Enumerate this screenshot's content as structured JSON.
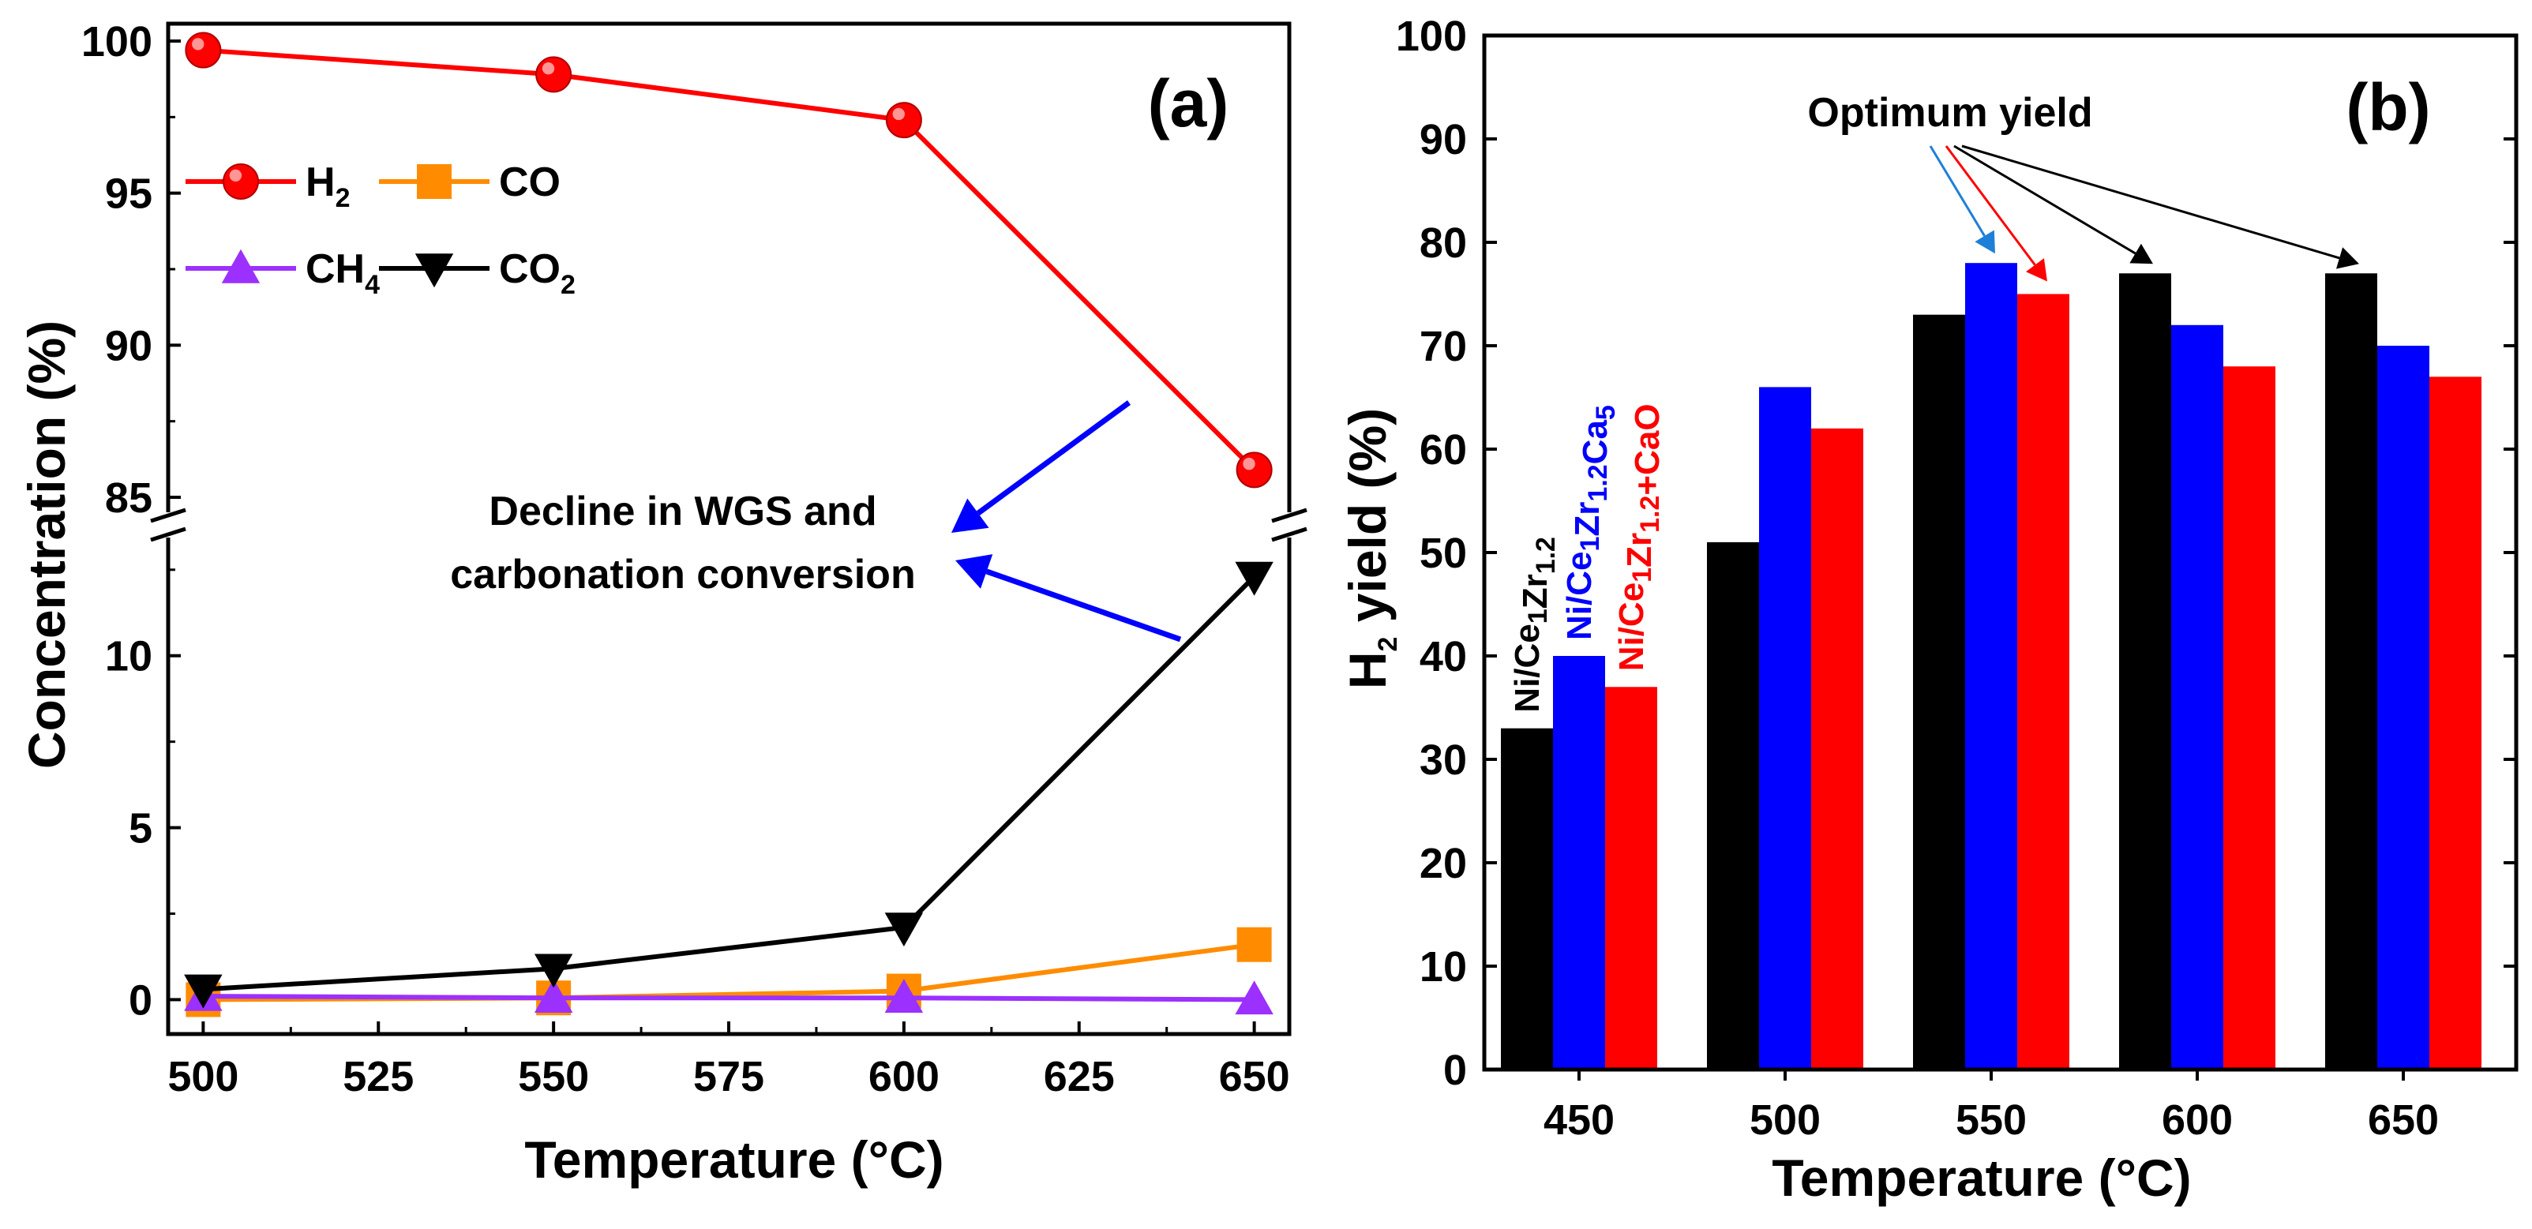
{
  "chart_data": [
    {
      "panel": "(a)",
      "type": "line",
      "xlabel": "Temperature (°C)",
      "ylabel": "Concentration (%)",
      "x": [
        500,
        550,
        600,
        650
      ],
      "xlim": [
        495,
        655
      ],
      "x_ticks": [
        500,
        525,
        550,
        575,
        600,
        625,
        650
      ],
      "y_axis_break": true,
      "ylim_lower": [
        -1,
        13
      ],
      "ylim_upper": [
        85,
        100
      ],
      "y_ticks_lower": [
        0,
        5,
        10
      ],
      "y_ticks_upper": [
        85,
        90,
        95,
        100
      ],
      "series": [
        {
          "name": "H2",
          "label_main": "H",
          "label_sub": "2",
          "marker": "circle",
          "color": "#ff0000",
          "values": [
            99.7,
            98.9,
            97.4,
            85.9
          ]
        },
        {
          "name": "CO",
          "label_main": "CO",
          "label_sub": "",
          "marker": "square",
          "color": "#ff8c00",
          "values": [
            0.0,
            0.05,
            0.25,
            1.6
          ]
        },
        {
          "name": "CH4",
          "label_main": "CH",
          "label_sub": "4",
          "marker": "triangle-up",
          "color": "#9b30ff",
          "values": [
            0.1,
            0.05,
            0.05,
            0.0
          ]
        },
        {
          "name": "CO2",
          "label_main": "CO",
          "label_sub": "2",
          "marker": "triangle-down",
          "color": "#000000",
          "values": [
            0.3,
            0.9,
            2.1,
            12.3
          ]
        }
      ],
      "annotation": {
        "line1": "Decline in WGS and",
        "line2": "carbonation conversion",
        "arrow_color": "#0000ff"
      },
      "grid": false,
      "legend": "upper-left"
    },
    {
      "panel": "(b)",
      "type": "bar",
      "xlabel": "Temperature (°C)",
      "ylabel_main": "H",
      "ylabel_sub": "2",
      "ylabel_rest": " yield (%)",
      "categories": [
        "450",
        "500",
        "550",
        "600",
        "650"
      ],
      "ylim": [
        0,
        100
      ],
      "y_ticks": [
        0,
        10,
        20,
        30,
        40,
        50,
        60,
        70,
        80,
        90,
        100
      ],
      "series": [
        {
          "name": "Ni/Ce1Zr1.2",
          "color": "#000000",
          "values": [
            33,
            51,
            73,
            77,
            77
          ],
          "label_parts": [
            [
              "Ni/Ce",
              ""
            ],
            [
              "1",
              "sub"
            ],
            [
              "Zr",
              ""
            ],
            [
              "1.2",
              "sub"
            ]
          ]
        },
        {
          "name": "Ni/Ce1Zr1.2Ca5",
          "color": "#0000ff",
          "values": [
            40,
            66,
            78,
            72,
            70
          ],
          "label_parts": [
            [
              "Ni/Ce",
              ""
            ],
            [
              "1",
              "sub"
            ],
            [
              "Zr",
              ""
            ],
            [
              "1.2",
              "sub"
            ],
            [
              "Ca",
              ""
            ],
            [
              "5",
              "sub"
            ]
          ]
        },
        {
          "name": "Ni/Ce1Zr1.2+CaO",
          "color": "#ff0000",
          "values": [
            37,
            62,
            75,
            68,
            67
          ],
          "label_parts": [
            [
              "Ni/Ce",
              ""
            ],
            [
              "1",
              "sub"
            ],
            [
              "Zr",
              ""
            ],
            [
              "1.2",
              "sub"
            ],
            [
              "+CaO",
              ""
            ]
          ]
        }
      ],
      "annotation": {
        "text": "Optimum yield"
      },
      "grid": false
    }
  ]
}
